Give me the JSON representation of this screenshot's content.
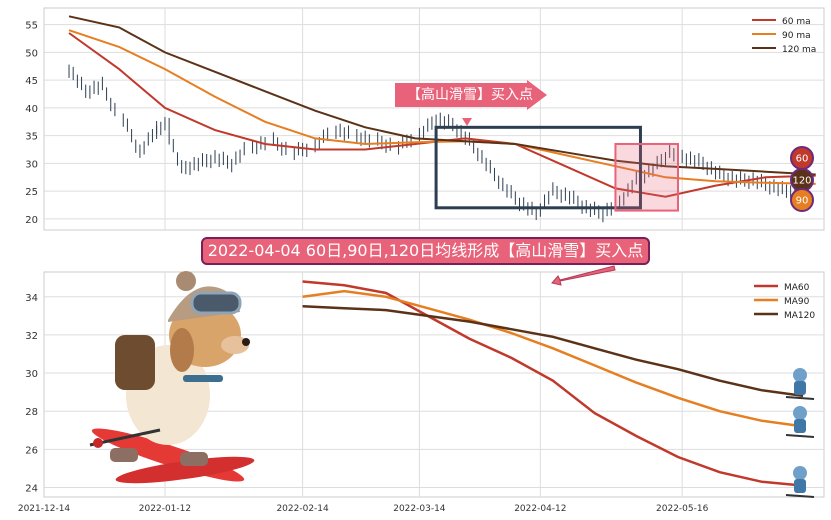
{
  "title": "2022-04-04 60日,90日,120日均线形成【高山滑雪】买入点",
  "signal_label": "【高山滑雪】买入点",
  "colors": {
    "ma60": "#c0392b",
    "ma90": "#e67e22",
    "ma120": "#5b3217",
    "price": "#2c3e50",
    "panel_grid": "#dddddd",
    "highlight": "#e8637a"
  },
  "badges": [
    "60",
    "120",
    "90"
  ],
  "chart_data": [
    {
      "type": "line",
      "panel": "top",
      "title": "",
      "xlabel": "",
      "ylabel": "",
      "ylim": [
        18,
        58
      ],
      "yticks": [
        20,
        25,
        30,
        35,
        40,
        45,
        50,
        55
      ],
      "xlim": [
        "2021-12-14",
        "2022-06-19"
      ],
      "grid": true,
      "legend": "top-right",
      "price_x": [
        "2021-12-20",
        "2021-12-24",
        "2021-12-28",
        "2022-01-02",
        "2022-01-06",
        "2022-01-10",
        "2022-01-13",
        "2022-01-16",
        "2022-01-20",
        "2022-01-24",
        "2022-01-28",
        "2022-02-02",
        "2022-02-07",
        "2022-02-12",
        "2022-02-17",
        "2022-02-22",
        "2022-02-27",
        "2022-03-04",
        "2022-03-09",
        "2022-03-14",
        "2022-03-18",
        "2022-03-22",
        "2022-03-26",
        "2022-03-30",
        "2022-04-03",
        "2022-04-07",
        "2022-04-11",
        "2022-04-15",
        "2022-04-19",
        "2022-04-23",
        "2022-04-27",
        "2022-05-01",
        "2022-05-05",
        "2022-05-09",
        "2022-05-13",
        "2022-05-17",
        "2022-05-21",
        "2022-05-25",
        "2022-05-29",
        "2022-06-02",
        "2022-06-06",
        "2022-06-10",
        "2022-06-14"
      ],
      "price_y": [
        47,
        43,
        44,
        38,
        32,
        36,
        37,
        29,
        30,
        31,
        30,
        33,
        34,
        32,
        33,
        36,
        35,
        34,
        33,
        35,
        38,
        37,
        34,
        30,
        26,
        23,
        21,
        25,
        24,
        22,
        21,
        23,
        27,
        29,
        32,
        31,
        30,
        28,
        27,
        27,
        26,
        25,
        26
      ],
      "series": [
        {
          "name": "60 ma",
          "x": [
            "2021-12-20",
            "2022-01-01",
            "2022-01-12",
            "2022-01-24",
            "2022-02-05",
            "2022-02-17",
            "2022-03-01",
            "2022-03-13",
            "2022-03-25",
            "2022-04-06",
            "2022-04-18",
            "2022-04-30",
            "2022-05-12",
            "2022-05-24",
            "2022-06-05",
            "2022-06-17"
          ],
          "values": [
            53.5,
            47.0,
            40.0,
            36.0,
            33.5,
            32.5,
            32.5,
            33.5,
            34.5,
            33.5,
            29.5,
            25.5,
            24.0,
            26.0,
            27.5,
            27.8
          ]
        },
        {
          "name": "90 ma",
          "x": [
            "2021-12-20",
            "2022-01-01",
            "2022-01-12",
            "2022-01-24",
            "2022-02-05",
            "2022-02-17",
            "2022-03-01",
            "2022-03-13",
            "2022-03-25",
            "2022-04-06",
            "2022-04-18",
            "2022-04-30",
            "2022-05-12",
            "2022-05-24",
            "2022-06-05",
            "2022-06-17"
          ],
          "values": [
            54.0,
            51.0,
            47.0,
            42.0,
            37.5,
            34.5,
            33.5,
            33.8,
            34.0,
            33.5,
            31.5,
            29.5,
            27.5,
            26.8,
            26.5,
            26.3
          ]
        },
        {
          "name": "120 ma",
          "x": [
            "2021-12-20",
            "2022-01-01",
            "2022-01-12",
            "2022-01-24",
            "2022-02-05",
            "2022-02-17",
            "2022-03-01",
            "2022-03-13",
            "2022-03-25",
            "2022-04-06",
            "2022-04-18",
            "2022-04-30",
            "2022-05-12",
            "2022-05-24",
            "2022-06-05",
            "2022-06-17"
          ],
          "values": [
            56.5,
            54.5,
            50.0,
            46.5,
            43.0,
            39.5,
            36.5,
            34.5,
            34.0,
            33.5,
            32.0,
            30.5,
            29.5,
            29.0,
            28.5,
            28.0
          ]
        }
      ],
      "annotations": {
        "signal_date": "2022-04-04"
      }
    },
    {
      "type": "line",
      "panel": "bottom",
      "title": "",
      "xlabel": "",
      "ylabel": "",
      "ylim": [
        23.5,
        35.3
      ],
      "yticks": [
        24,
        26,
        28,
        30,
        32,
        34
      ],
      "xlim": [
        "2021-12-14",
        "2022-06-19"
      ],
      "xticks": [
        "2021-12-14",
        "2022-01-12",
        "2022-02-14",
        "2022-03-14",
        "2022-04-12",
        "2022-05-16"
      ],
      "grid": true,
      "legend": "top-right",
      "series": [
        {
          "name": "MA60",
          "x": [
            "2022-02-14",
            "2022-02-24",
            "2022-03-06",
            "2022-03-16",
            "2022-03-26",
            "2022-04-05",
            "2022-04-15",
            "2022-04-25",
            "2022-05-05",
            "2022-05-15",
            "2022-05-25",
            "2022-06-04",
            "2022-06-14"
          ],
          "values": [
            34.8,
            34.6,
            34.2,
            33.0,
            31.8,
            30.8,
            29.6,
            27.9,
            26.7,
            25.6,
            24.8,
            24.3,
            24.1
          ]
        },
        {
          "name": "MA90",
          "x": [
            "2022-02-14",
            "2022-02-24",
            "2022-03-06",
            "2022-03-16",
            "2022-03-26",
            "2022-04-05",
            "2022-04-15",
            "2022-04-25",
            "2022-05-05",
            "2022-05-15",
            "2022-05-25",
            "2022-06-04",
            "2022-06-14"
          ],
          "values": [
            34.0,
            34.3,
            34.0,
            33.4,
            32.8,
            32.1,
            31.3,
            30.4,
            29.5,
            28.7,
            28.0,
            27.5,
            27.2
          ]
        },
        {
          "name": "MA120",
          "x": [
            "2022-02-14",
            "2022-02-24",
            "2022-03-06",
            "2022-03-16",
            "2022-03-26",
            "2022-04-05",
            "2022-04-15",
            "2022-04-25",
            "2022-05-05",
            "2022-05-15",
            "2022-05-25",
            "2022-06-04",
            "2022-06-14"
          ],
          "values": [
            33.5,
            33.4,
            33.3,
            33.0,
            32.7,
            32.3,
            31.9,
            31.3,
            30.7,
            30.2,
            29.6,
            29.1,
            28.8
          ]
        }
      ]
    }
  ]
}
